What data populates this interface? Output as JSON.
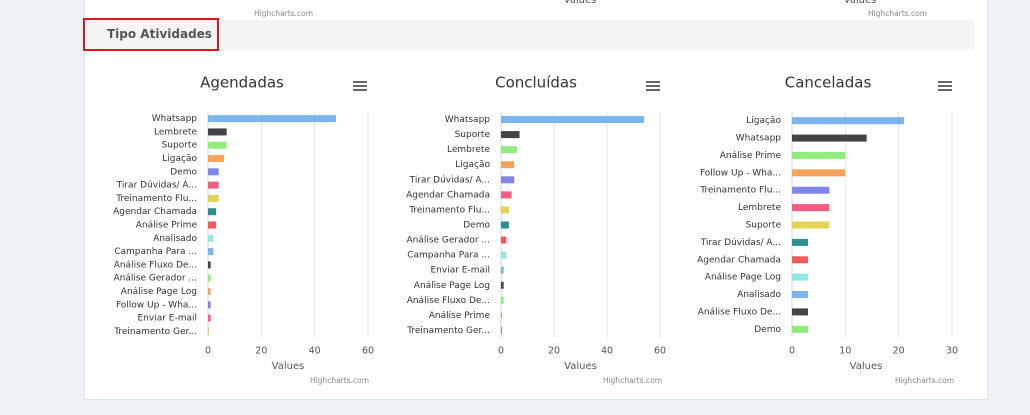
{
  "top_remnants": [
    {
      "axis_title": "Values",
      "credit": "Highcharts.com"
    },
    {
      "axis_title": "Values",
      "credit": "Highcharts.com"
    }
  ],
  "section_title": "Tipo Atividades",
  "chart_data": [
    {
      "type": "bar",
      "title": "Agendadas",
      "xaxis_title": "Values",
      "credit": "Highcharts.com",
      "categories": [
        "Whatsapp",
        "Lembrete",
        "Suporte",
        "Ligação",
        "Demo",
        "Tirar Dúvidas/ A...",
        "Treinamento Flu...",
        "Agendar Chamada",
        "Análise Prime",
        "Analisado",
        "Campanha Para ...",
        "Análise Fluxo De...",
        "Análise Gerador ...",
        "Análise Page Log",
        "Follow Up - Wha...",
        "Enviar E-mail",
        "Treinamento Ger..."
      ],
      "values": [
        48,
        7,
        7,
        6,
        4,
        4,
        4,
        3,
        3,
        2,
        2,
        1,
        1,
        1,
        1,
        1,
        0
      ],
      "colors": [
        "#7cb5ec",
        "#434348",
        "#90ed7d",
        "#f7a35c",
        "#8085e9",
        "#f15c80",
        "#e4d354",
        "#2b908f",
        "#f45b5b",
        "#91e8e1"
      ],
      "xlim": [
        0,
        60
      ],
      "xticks": [
        0,
        20,
        40,
        60
      ],
      "grid": true
    },
    {
      "type": "bar",
      "title": "Concluídas",
      "xaxis_title": "Values",
      "credit": "Highcharts.com",
      "categories": [
        "Whatsapp",
        "Suporte",
        "Lembrete",
        "Ligação",
        "Tirar Dúvidas/ A...",
        "Agendar Chamada",
        "Treinamento Flu...",
        "Demo",
        "Análise Gerador ...",
        "Campanha Para ...",
        "Enviar E-mail",
        "Análise Page Log",
        "Análise Fluxo De...",
        "Análise Prime",
        "Treinamento Ger..."
      ],
      "values": [
        54,
        7,
        6,
        5,
        5,
        4,
        3,
        3,
        2,
        2,
        1,
        1,
        1,
        0,
        0
      ],
      "colors": [
        "#7cb5ec",
        "#434348",
        "#90ed7d",
        "#f7a35c",
        "#8085e9",
        "#f15c80",
        "#e4d354",
        "#2b908f",
        "#f45b5b",
        "#91e8e1"
      ],
      "xlim": [
        0,
        60
      ],
      "xticks": [
        0,
        20,
        40,
        60
      ],
      "grid": true
    },
    {
      "type": "bar",
      "title": "Canceladas",
      "xaxis_title": "Values",
      "credit": "Highcharts.com",
      "categories": [
        "Ligação",
        "Whatsapp",
        "Análise Prime",
        "Follow Up - Wha...",
        "Treinamento Flu...",
        "Lembrete",
        "Suporte",
        "Tirar Dúvidas/ A...",
        "Agendar Chamada",
        "Análise Page Log",
        "Analisado",
        "Análise Fluxo De...",
        "Demo"
      ],
      "values": [
        21,
        14,
        10,
        10,
        7,
        7,
        7,
        3,
        3,
        3,
        3,
        3,
        3
      ],
      "colors": [
        "#7cb5ec",
        "#434348",
        "#90ed7d",
        "#f7a35c",
        "#8085e9",
        "#f15c80",
        "#e4d354",
        "#2b908f",
        "#f45b5b",
        "#91e8e1"
      ],
      "xlim": [
        0,
        30
      ],
      "xticks": [
        0,
        10,
        20,
        30
      ],
      "grid": true
    }
  ]
}
